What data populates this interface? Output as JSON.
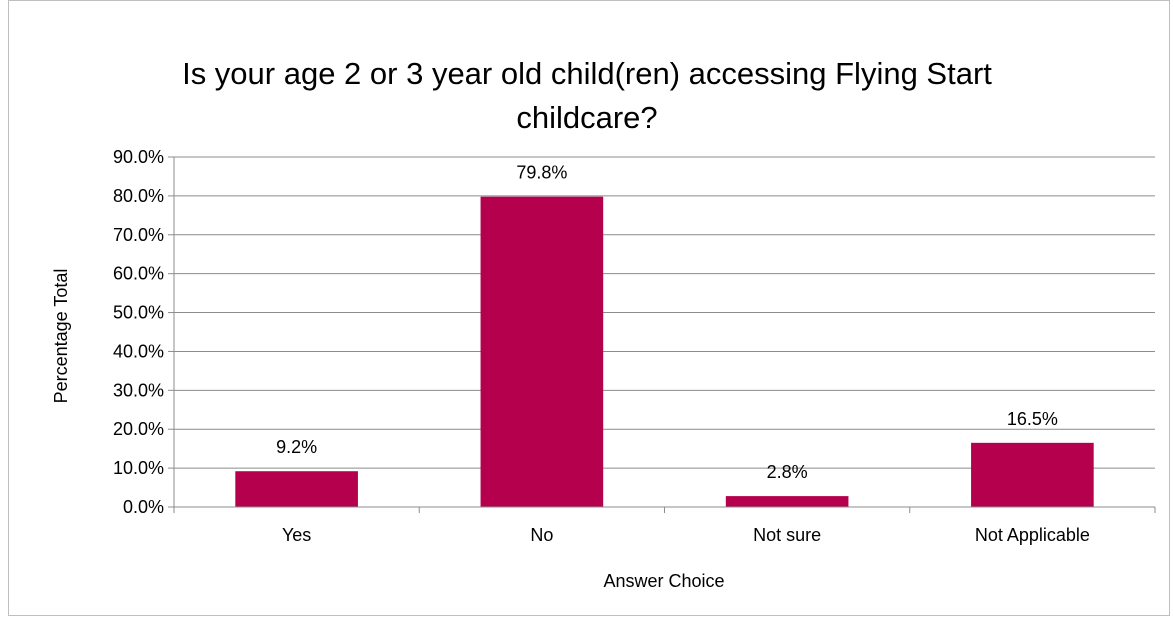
{
  "chart_data": {
    "type": "bar",
    "title_lines": [
      "Is your age 2 or 3 year old child(ren) accessing Flying Start",
      "childcare?"
    ],
    "categories": [
      "Yes",
      "No",
      "Not sure",
      "Not Applicable"
    ],
    "values": [
      9.2,
      79.8,
      2.8,
      16.5
    ],
    "data_labels": [
      "9.2%",
      "79.8%",
      "2.8%",
      "16.5%"
    ],
    "xlabel": "Answer Choice",
    "ylabel": "Percentage Total",
    "ylim": [
      0,
      90
    ],
    "yticks": [
      "0.0%",
      "10.0%",
      "20.0%",
      "30.0%",
      "40.0%",
      "50.0%",
      "60.0%",
      "70.0%",
      "80.0%",
      "90.0%"
    ],
    "bar_color": "#b5004e",
    "grid": true,
    "legend": "none"
  }
}
